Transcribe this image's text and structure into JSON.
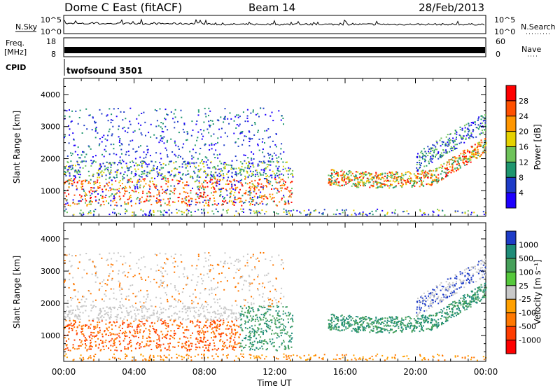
{
  "header": {
    "title": "Dome C East (fitACF)",
    "beam": "Beam 14",
    "date": "28/Feb/2013"
  },
  "chart_data": [
    {
      "type": "line",
      "panel": "noise-search",
      "left_label": "N.Sky",
      "right_label": "N.Search",
      "left_ticks": [
        "10^5",
        "10^0"
      ],
      "right_ticks": [
        "10^5",
        "10^0"
      ]
    },
    {
      "type": "bar",
      "panel": "frequency-nave",
      "left_label_line1": "Freq.",
      "left_label_line2": "[MHz]",
      "right_label": "Nave",
      "left_ticks": [
        "18",
        "8"
      ],
      "right_ticks": [
        "60",
        "0"
      ]
    },
    {
      "type": "table",
      "panel": "cpid",
      "label": "CPID",
      "value": "twofsound 3501"
    },
    {
      "type": "heatmap",
      "panel": "power",
      "ylabel": "Slant Range [km]",
      "ylim": [
        200,
        4500
      ],
      "yticks": [
        1000,
        2000,
        3000,
        4000
      ],
      "colorbar": {
        "label": "Power [dB]",
        "ticks": [
          "28",
          "24",
          "20",
          "16",
          "12",
          "8",
          "4"
        ],
        "colors": [
          "#ff0000",
          "#ff5000",
          "#ff9600",
          "#e6d200",
          "#6ec35a",
          "#1e966e",
          "#1e3cc8",
          "#1e00ff"
        ]
      }
    },
    {
      "type": "heatmap",
      "panel": "velocity",
      "ylabel": "Slant Range [km]",
      "ylim": [
        200,
        4500
      ],
      "yticks": [
        1000,
        2000,
        3000,
        4000
      ],
      "xlabel": "Time UT",
      "xticks": [
        "00:00",
        "04:00",
        "08:00",
        "12:00",
        "16:00",
        "20:00",
        "00:00"
      ],
      "colorbar": {
        "label": "Velocity [m s⁻¹]",
        "ticks": [
          "1000",
          "500",
          "100",
          "25",
          "-25",
          "-100",
          "-500",
          "-1000"
        ],
        "colors": [
          "#1e3cc8",
          "#1e8c78",
          "#46a05a",
          "#55c83c",
          "#c8c8c8",
          "#ffa000",
          "#ff7800",
          "#ff3c00",
          "#ff0000"
        ]
      }
    }
  ]
}
